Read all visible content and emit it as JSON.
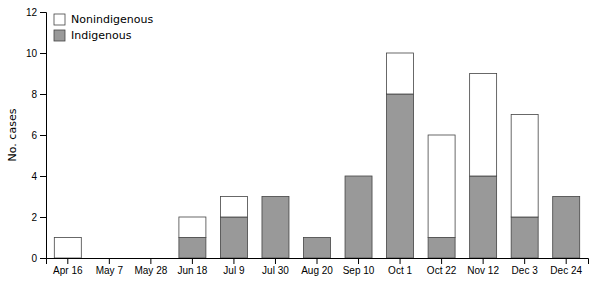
{
  "chart_data": {
    "type": "bar",
    "stacked": true,
    "categories": [
      "Apr 16",
      "May 7",
      "May 28",
      "Jun 18",
      "Jul 9",
      "Jul 30",
      "Aug 20",
      "Sep 10",
      "Oct 1",
      "Oct 22",
      "Nov 12",
      "Dec 3",
      "Dec 24"
    ],
    "series": [
      {
        "name": "Indigenous",
        "color": "#999999",
        "values": [
          0,
          0,
          0,
          1,
          2,
          3,
          1,
          4,
          8,
          1,
          4,
          2,
          3
        ]
      },
      {
        "name": "Nonindigenous",
        "color": "#ffffff",
        "values": [
          1,
          0,
          0,
          1,
          1,
          0,
          0,
          0,
          2,
          5,
          5,
          5,
          0
        ]
      }
    ],
    "y_label": "No. cases",
    "ylim": [
      0,
      12
    ],
    "yticks": [
      0,
      2,
      4,
      6,
      8,
      10,
      12
    ],
    "grid": false,
    "legend": "upper left"
  }
}
